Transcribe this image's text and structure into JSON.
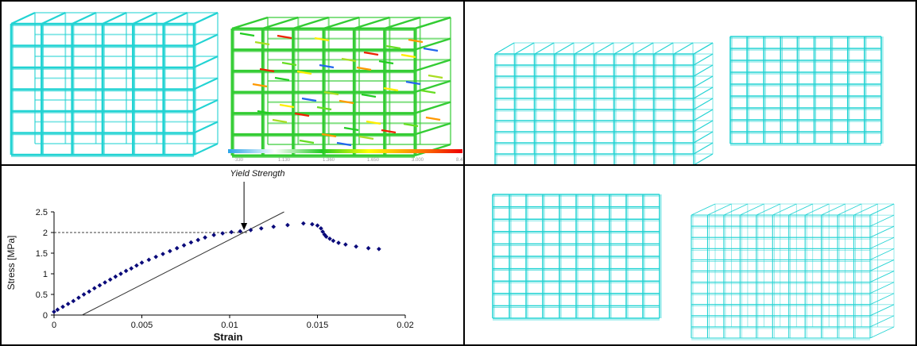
{
  "colors": {
    "lattice": "#22d3d3",
    "lattice_dark": "#0e9a9a",
    "data_points": "#0a0a7a",
    "fit_line": "#333333",
    "legend_gradient": [
      "#2aa4e8",
      "#ffffff",
      "#22cc22",
      "#ffff00",
      "#ff8800",
      "#ee0000"
    ]
  },
  "panels": {
    "top_left": {
      "description_icons": [
        "lattice-cube-icon",
        "stress-colored-lattice-icon"
      ],
      "legend_labels": [
        "·330",
        "1.130",
        "1.360",
        "1.650",
        "3.000",
        "8.470"
      ]
    },
    "top_right": {
      "description_icons": [
        "lattice-cube-iso-icon",
        "lattice-cube-front-icon"
      ]
    },
    "bottom_right": {
      "description_icons": [
        "lattice-cube-front-icon",
        "lattice-cube-iso-icon"
      ]
    }
  },
  "chart_data": {
    "type": "scatter",
    "xlabel": "Strain",
    "ylabel": "Stress [MPa]",
    "xlim": [
      0,
      0.02
    ],
    "ylim": [
      0,
      2.5
    ],
    "x_ticks": [
      "0",
      "0.005",
      "0.01",
      "0.015",
      "0.02"
    ],
    "y_ticks": [
      "0",
      "0.5",
      "1",
      "1.5",
      "2",
      "2.5"
    ],
    "points": [
      [
        0.0,
        0.08
      ],
      [
        0.0002,
        0.13
      ],
      [
        0.0005,
        0.2
      ],
      [
        0.0008,
        0.27
      ],
      [
        0.0011,
        0.34
      ],
      [
        0.0014,
        0.42
      ],
      [
        0.0017,
        0.5
      ],
      [
        0.002,
        0.57
      ],
      [
        0.0023,
        0.65
      ],
      [
        0.0026,
        0.72
      ],
      [
        0.0029,
        0.79
      ],
      [
        0.0032,
        0.86
      ],
      [
        0.0035,
        0.93
      ],
      [
        0.0038,
        1.0
      ],
      [
        0.0041,
        1.07
      ],
      [
        0.0044,
        1.13
      ],
      [
        0.0047,
        1.2
      ],
      [
        0.005,
        1.27
      ],
      [
        0.0054,
        1.34
      ],
      [
        0.0058,
        1.41
      ],
      [
        0.0062,
        1.48
      ],
      [
        0.0066,
        1.55
      ],
      [
        0.007,
        1.62
      ],
      [
        0.0074,
        1.69
      ],
      [
        0.0078,
        1.76
      ],
      [
        0.0082,
        1.82
      ],
      [
        0.0086,
        1.88
      ],
      [
        0.0091,
        1.94
      ],
      [
        0.0096,
        1.98
      ],
      [
        0.0101,
        2.01
      ],
      [
        0.0106,
        2.03
      ],
      [
        0.0112,
        2.06
      ],
      [
        0.0118,
        2.1
      ],
      [
        0.0125,
        2.14
      ],
      [
        0.0133,
        2.18
      ],
      [
        0.0142,
        2.22
      ],
      [
        0.0147,
        2.2
      ],
      [
        0.015,
        2.17
      ],
      [
        0.0152,
        2.1
      ],
      [
        0.0153,
        2.02
      ],
      [
        0.0154,
        1.95
      ],
      [
        0.0155,
        1.9
      ],
      [
        0.0157,
        1.85
      ],
      [
        0.0159,
        1.8
      ],
      [
        0.0162,
        1.75
      ],
      [
        0.0166,
        1.71
      ],
      [
        0.0172,
        1.66
      ],
      [
        0.0179,
        1.62
      ],
      [
        0.0185,
        1.6
      ]
    ],
    "fit_line": {
      "x": [
        0.0016,
        0.0131
      ],
      "y": [
        0,
        2.5
      ]
    },
    "yield_line_y": 2.0,
    "yield_point_x": 0.011,
    "annotations": [
      {
        "text": "Yield Strength",
        "x": 0.011,
        "y": 2.0
      }
    ],
    "grid": false,
    "legend": "none"
  }
}
